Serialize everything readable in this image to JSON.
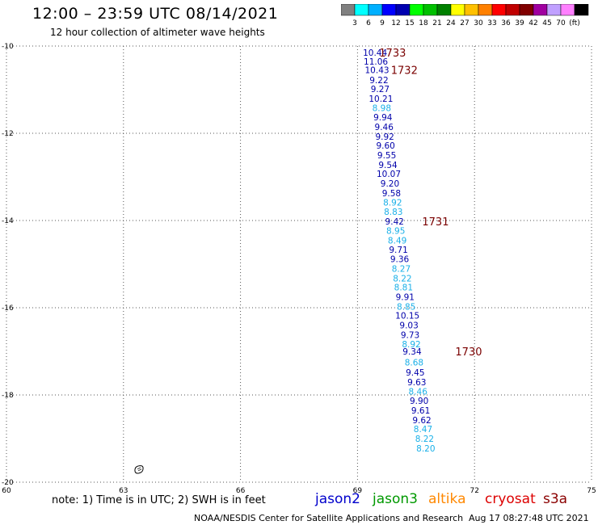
{
  "header": {
    "title": "12:00 – 23:59 UTC 08/14/2021",
    "subtitle": "12 hour collection of altimeter wave heights"
  },
  "colorbar": {
    "swatches": [
      "#808080",
      "#00ffff",
      "#00b0ff",
      "#0000ff",
      "#0000b0",
      "#00ff00",
      "#00c000",
      "#008000",
      "#ffff00",
      "#ffc000",
      "#ff8000",
      "#ff0000",
      "#c00000",
      "#800000",
      "#a000a0",
      "#c0a0ff",
      "#ff80ff",
      "#000000"
    ],
    "labels": [
      "3",
      "6",
      "9",
      "12",
      "15",
      "18",
      "21",
      "24",
      "27",
      "30",
      "33",
      "36",
      "39",
      "42",
      "45",
      "70",
      "(ft)"
    ]
  },
  "axes": {
    "lon_min": 60,
    "lon_max": 75,
    "lat_min": -20,
    "lat_max": -10,
    "lon_ticks": [
      60,
      63,
      66,
      69,
      72,
      75
    ],
    "lat_ticks": [
      -10,
      -12,
      -14,
      -16,
      -18,
      -20
    ],
    "lon_tick_labels": [
      "60",
      "63",
      "66",
      "69",
      "72",
      "75"
    ],
    "lat_tick_labels": [
      "-10",
      "-12",
      "-14",
      "-16",
      "-18",
      "-20"
    ],
    "grid": true
  },
  "satellite_colors": {
    "dark": "#0000aa",
    "light": "#1ab0e8",
    "time": "#7a0000"
  },
  "chart_data": {
    "type": "scatter",
    "units": "ft",
    "series": [
      {
        "name": "jason2",
        "points": [
          {
            "lon": 69.45,
            "lat": -10.15,
            "swh": "10.44",
            "tone": "dark"
          },
          {
            "lon": 69.47,
            "lat": -10.35,
            "swh": "11.06",
            "tone": "dark"
          },
          {
            "lon": 69.5,
            "lat": -10.55,
            "swh": "10.43",
            "tone": "dark"
          },
          {
            "lon": 69.55,
            "lat": -10.78,
            "swh": "9.22",
            "tone": "dark"
          },
          {
            "lon": 69.58,
            "lat": -10.98,
            "swh": "9.27",
            "tone": "dark"
          },
          {
            "lon": 69.6,
            "lat": -11.2,
            "swh": "10.21",
            "tone": "dark"
          },
          {
            "lon": 69.62,
            "lat": -11.42,
            "swh": "8.98",
            "tone": "light"
          },
          {
            "lon": 69.65,
            "lat": -11.63,
            "swh": "9.94",
            "tone": "dark"
          },
          {
            "lon": 69.68,
            "lat": -11.85,
            "swh": "9.46",
            "tone": "dark"
          },
          {
            "lon": 69.7,
            "lat": -12.07,
            "swh": "9.92",
            "tone": "dark"
          },
          {
            "lon": 69.72,
            "lat": -12.28,
            "swh": "9.60",
            "tone": "dark"
          },
          {
            "lon": 69.75,
            "lat": -12.5,
            "swh": "9.55",
            "tone": "dark"
          },
          {
            "lon": 69.78,
            "lat": -12.72,
            "swh": "9.54",
            "tone": "dark"
          },
          {
            "lon": 69.8,
            "lat": -12.93,
            "swh": "10.07",
            "tone": "dark"
          },
          {
            "lon": 69.83,
            "lat": -13.15,
            "swh": "9.20",
            "tone": "dark"
          },
          {
            "lon": 69.87,
            "lat": -13.37,
            "swh": "9.58",
            "tone": "dark"
          },
          {
            "lon": 69.9,
            "lat": -13.58,
            "swh": "8.92",
            "tone": "light"
          },
          {
            "lon": 69.92,
            "lat": -13.8,
            "swh": "8.83",
            "tone": "light"
          },
          {
            "lon": 69.95,
            "lat": -14.02,
            "swh": "9.42",
            "tone": "dark"
          },
          {
            "lon": 69.98,
            "lat": -14.23,
            "swh": "8.95",
            "tone": "light"
          },
          {
            "lon": 70.02,
            "lat": -14.45,
            "swh": "8.49",
            "tone": "light"
          },
          {
            "lon": 70.05,
            "lat": -14.67,
            "swh": "9.71",
            "tone": "dark"
          },
          {
            "lon": 70.08,
            "lat": -14.88,
            "swh": "9.36",
            "tone": "dark"
          },
          {
            "lon": 70.12,
            "lat": -15.1,
            "swh": "8.27",
            "tone": "light"
          },
          {
            "lon": 70.15,
            "lat": -15.32,
            "swh": "8.22",
            "tone": "light"
          },
          {
            "lon": 70.18,
            "lat": -15.53,
            "swh": "8.81",
            "tone": "light"
          },
          {
            "lon": 70.22,
            "lat": -15.75,
            "swh": "9.91",
            "tone": "dark"
          },
          {
            "lon": 70.25,
            "lat": -15.97,
            "swh": "8.85",
            "tone": "light"
          },
          {
            "lon": 70.28,
            "lat": -16.18,
            "swh": "10.15",
            "tone": "dark"
          },
          {
            "lon": 70.32,
            "lat": -16.4,
            "swh": "9.03",
            "tone": "dark"
          },
          {
            "lon": 70.35,
            "lat": -16.62,
            "swh": "9.73",
            "tone": "dark"
          },
          {
            "lon": 70.38,
            "lat": -16.83,
            "swh": "8.92",
            "tone": "light"
          },
          {
            "lon": 70.4,
            "lat": -17.0,
            "swh": "9.34",
            "tone": "dark"
          },
          {
            "lon": 70.45,
            "lat": -17.25,
            "swh": "8.68",
            "tone": "light"
          },
          {
            "lon": 70.48,
            "lat": -17.48,
            "swh": "9.45",
            "tone": "dark"
          },
          {
            "lon": 70.52,
            "lat": -17.7,
            "swh": "9.63",
            "tone": "dark"
          },
          {
            "lon": 70.55,
            "lat": -17.92,
            "swh": "8.46",
            "tone": "light"
          },
          {
            "lon": 70.58,
            "lat": -18.13,
            "swh": "9.90",
            "tone": "dark"
          },
          {
            "lon": 70.62,
            "lat": -18.35,
            "swh": "9.61",
            "tone": "dark"
          },
          {
            "lon": 70.65,
            "lat": -18.57,
            "swh": "9.62",
            "tone": "dark"
          },
          {
            "lon": 70.68,
            "lat": -18.78,
            "swh": "8.47",
            "tone": "light"
          },
          {
            "lon": 70.72,
            "lat": -19.0,
            "swh": "8.22",
            "tone": "light"
          },
          {
            "lon": 70.75,
            "lat": -19.22,
            "swh": "8.20",
            "tone": "light"
          }
        ]
      }
    ],
    "time_labels": [
      {
        "text": "1733",
        "lon": 69.9,
        "lat": -10.15
      },
      {
        "text": "1732",
        "lon": 70.2,
        "lat": -10.55
      },
      {
        "text": "1731",
        "lon": 71.0,
        "lat": -14.02
      },
      {
        "text": "1730",
        "lon": 71.85,
        "lat": -17.0
      }
    ],
    "land": [
      {
        "name": "Rodrigues Island",
        "lon": 63.4,
        "lat": -19.7
      }
    ]
  },
  "note": {
    "text": "note:  1) Time is in UTC;  2) SWH is in feet"
  },
  "satellites": [
    {
      "label": "jason2",
      "color": "#0000cc"
    },
    {
      "label": "jason3",
      "color": "#009900"
    },
    {
      "label": "altika",
      "color": "#ff8800"
    },
    {
      "label": "cryosat",
      "color": "#dd0000"
    },
    {
      "label": "s3a",
      "color": "#8b0000"
    }
  ],
  "footer": {
    "credit": "NOAA/NESDIS Center for Satellite Applications and Research",
    "timestamp": "Aug 17 08:27:48 UTC 2021"
  }
}
